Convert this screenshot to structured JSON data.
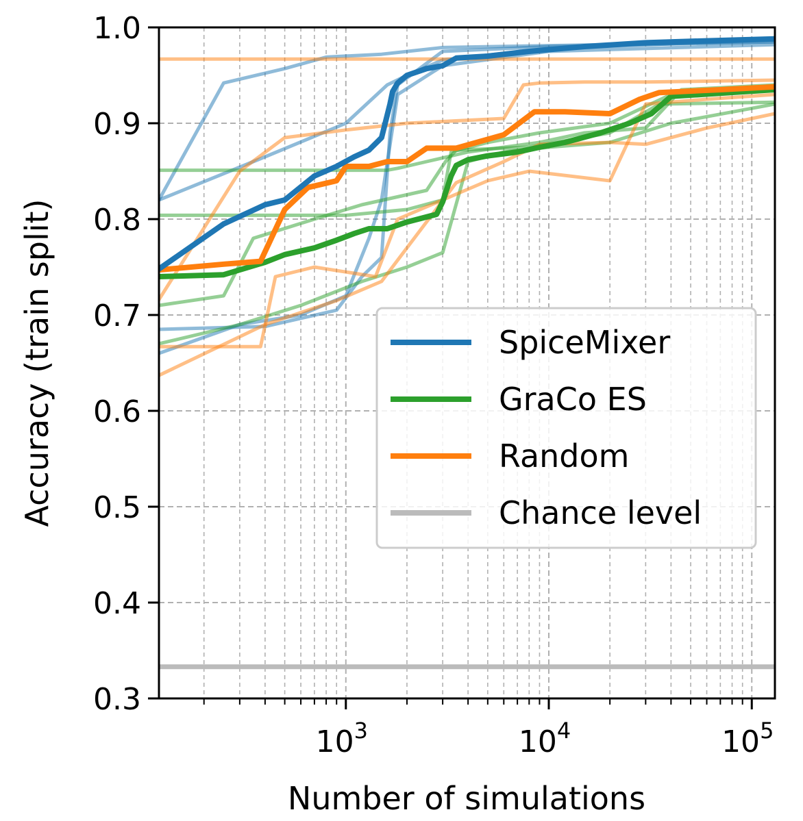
{
  "chart_data": {
    "type": "line",
    "xscale": "log",
    "xlabel": "Number of simulations",
    "ylabel": "Accuracy (train split)",
    "xlim": [
      120,
      130000
    ],
    "ylim": [
      0.3,
      1.0
    ],
    "xticks": [
      {
        "value": 1000,
        "base": "10",
        "exp": "3"
      },
      {
        "value": 10000,
        "base": "10",
        "exp": "4"
      },
      {
        "value": 100000,
        "base": "10",
        "exp": "5"
      }
    ],
    "yticks": [
      "0.3",
      "0.4",
      "0.5",
      "0.6",
      "0.7",
      "0.8",
      "0.9",
      "1.0"
    ],
    "grid": true,
    "legend_position": "center-right",
    "colors": {
      "SpiceMixer": "#1f77b4",
      "GraCo ES": "#2ca02c",
      "Random": "#ff7f0e",
      "Chance level": "#bbbbbb"
    },
    "legend": [
      "SpiceMixer",
      "GraCo ES",
      "Random",
      "Chance level"
    ],
    "series": [
      {
        "name": "SpiceMixer",
        "kind": "mean",
        "x": [
          120,
          250,
          400,
          500,
          700,
          900,
          1100,
          1300,
          1500,
          1650,
          1700,
          1800,
          2000,
          2500,
          3000,
          3500,
          5000,
          8000,
          15000,
          30000,
          60000,
          130000
        ],
        "y": [
          0.748,
          0.795,
          0.815,
          0.82,
          0.845,
          0.855,
          0.865,
          0.872,
          0.885,
          0.92,
          0.933,
          0.942,
          0.95,
          0.957,
          0.96,
          0.968,
          0.97,
          0.975,
          0.98,
          0.984,
          0.986,
          0.988
        ]
      },
      {
        "name": "SpiceMixer",
        "kind": "run",
        "x": [
          120,
          250,
          500,
          800,
          1500,
          3000,
          10000,
          130000
        ],
        "y": [
          0.82,
          0.942,
          0.957,
          0.969,
          0.972,
          0.979,
          0.981,
          0.985
        ]
      },
      {
        "name": "SpiceMixer",
        "kind": "run",
        "x": [
          120,
          400,
          900,
          1200,
          1500,
          1650,
          1800,
          3000,
          10000,
          130000
        ],
        "y": [
          0.685,
          0.688,
          0.705,
          0.74,
          0.76,
          0.89,
          0.94,
          0.975,
          0.98,
          0.985
        ]
      },
      {
        "name": "SpiceMixer",
        "kind": "run",
        "x": [
          120,
          300,
          600,
          1000,
          1300,
          1500,
          1800,
          3000,
          10000,
          130000
        ],
        "y": [
          0.66,
          0.69,
          0.7,
          0.72,
          0.78,
          0.82,
          0.93,
          0.96,
          0.975,
          0.982
        ]
      },
      {
        "name": "SpiceMixer",
        "kind": "run",
        "x": [
          120,
          400,
          1000,
          1600,
          2000,
          3000,
          10000,
          130000
        ],
        "y": [
          0.82,
          0.865,
          0.9,
          0.94,
          0.95,
          0.966,
          0.978,
          0.987
        ]
      },
      {
        "name": "GraCo ES",
        "kind": "mean",
        "x": [
          120,
          250,
          400,
          500,
          700,
          900,
          1100,
          1300,
          1600,
          2000,
          2800,
          3000,
          3300,
          3500,
          4000,
          5000,
          7000,
          9000,
          12000,
          18000,
          25000,
          32000,
          40000,
          130000
        ],
        "y": [
          0.74,
          0.742,
          0.755,
          0.763,
          0.77,
          0.778,
          0.785,
          0.79,
          0.79,
          0.797,
          0.805,
          0.818,
          0.845,
          0.856,
          0.862,
          0.866,
          0.87,
          0.875,
          0.88,
          0.89,
          0.9,
          0.91,
          0.928,
          0.935
        ]
      },
      {
        "name": "GraCo ES",
        "kind": "run",
        "x": [
          120,
          1600,
          1800,
          2500,
          4000,
          9000,
          15000,
          30000,
          45000,
          130000
        ],
        "y": [
          0.851,
          0.851,
          0.853,
          0.86,
          0.87,
          0.88,
          0.89,
          0.895,
          0.935,
          0.94
        ]
      },
      {
        "name": "GraCo ES",
        "kind": "run",
        "x": [
          120,
          1000,
          2000,
          3000,
          3300,
          5000,
          9000,
          20000,
          40000,
          130000
        ],
        "y": [
          0.804,
          0.804,
          0.81,
          0.82,
          0.87,
          0.88,
          0.89,
          0.9,
          0.93,
          0.935
        ]
      },
      {
        "name": "GraCo ES",
        "kind": "run",
        "x": [
          120,
          250,
          350,
          700,
          1200,
          2500,
          3100,
          3500,
          8000,
          20000,
          35000,
          130000
        ],
        "y": [
          0.71,
          0.72,
          0.78,
          0.8,
          0.815,
          0.83,
          0.86,
          0.872,
          0.875,
          0.89,
          0.92,
          0.922
        ]
      },
      {
        "name": "GraCo ES",
        "kind": "run",
        "x": [
          120,
          300,
          600,
          1200,
          2000,
          3000,
          4000,
          6000,
          10000,
          20000,
          40000,
          130000
        ],
        "y": [
          0.67,
          0.69,
          0.71,
          0.735,
          0.75,
          0.765,
          0.86,
          0.87,
          0.875,
          0.88,
          0.9,
          0.92
        ]
      },
      {
        "name": "Random",
        "kind": "mean",
        "x": [
          120,
          250,
          380,
          500,
          650,
          900,
          1000,
          1300,
          1600,
          2000,
          2500,
          3500,
          6000,
          8500,
          12000,
          20000,
          28000,
          35000,
          70000,
          130000
        ],
        "y": [
          0.747,
          0.753,
          0.756,
          0.81,
          0.833,
          0.84,
          0.855,
          0.855,
          0.86,
          0.86,
          0.874,
          0.874,
          0.888,
          0.912,
          0.912,
          0.91,
          0.925,
          0.932,
          0.935,
          0.938
        ]
      },
      {
        "name": "Random",
        "kind": "run",
        "x": [
          120,
          130000
        ],
        "y": [
          0.967,
          0.967
        ]
      },
      {
        "name": "Random",
        "kind": "run",
        "x": [
          120,
          300,
          500,
          1000,
          2000,
          6000,
          7500,
          9000,
          15000,
          30000,
          130000
        ],
        "y": [
          0.716,
          0.85,
          0.885,
          0.893,
          0.9,
          0.905,
          0.94,
          0.942,
          0.943,
          0.943,
          0.945
        ]
      },
      {
        "name": "Random",
        "kind": "run",
        "x": [
          120,
          380,
          450,
          700,
          1400,
          1800,
          3000,
          5000,
          8000,
          20000,
          30000,
          60000,
          130000
        ],
        "y": [
          0.667,
          0.667,
          0.74,
          0.75,
          0.74,
          0.8,
          0.82,
          0.84,
          0.85,
          0.84,
          0.92,
          0.925,
          0.93
        ]
      },
      {
        "name": "Random",
        "kind": "run",
        "x": [
          120,
          400,
          900,
          1500,
          3500,
          6000,
          9000,
          20000,
          30000,
          60000,
          130000
        ],
        "y": [
          0.637,
          0.69,
          0.715,
          0.735,
          0.838,
          0.86,
          0.878,
          0.88,
          0.878,
          0.895,
          0.91
        ]
      },
      {
        "name": "Chance level",
        "kind": "baseline",
        "x": [
          120,
          130000
        ],
        "y": [
          0.333,
          0.333
        ]
      }
    ]
  }
}
